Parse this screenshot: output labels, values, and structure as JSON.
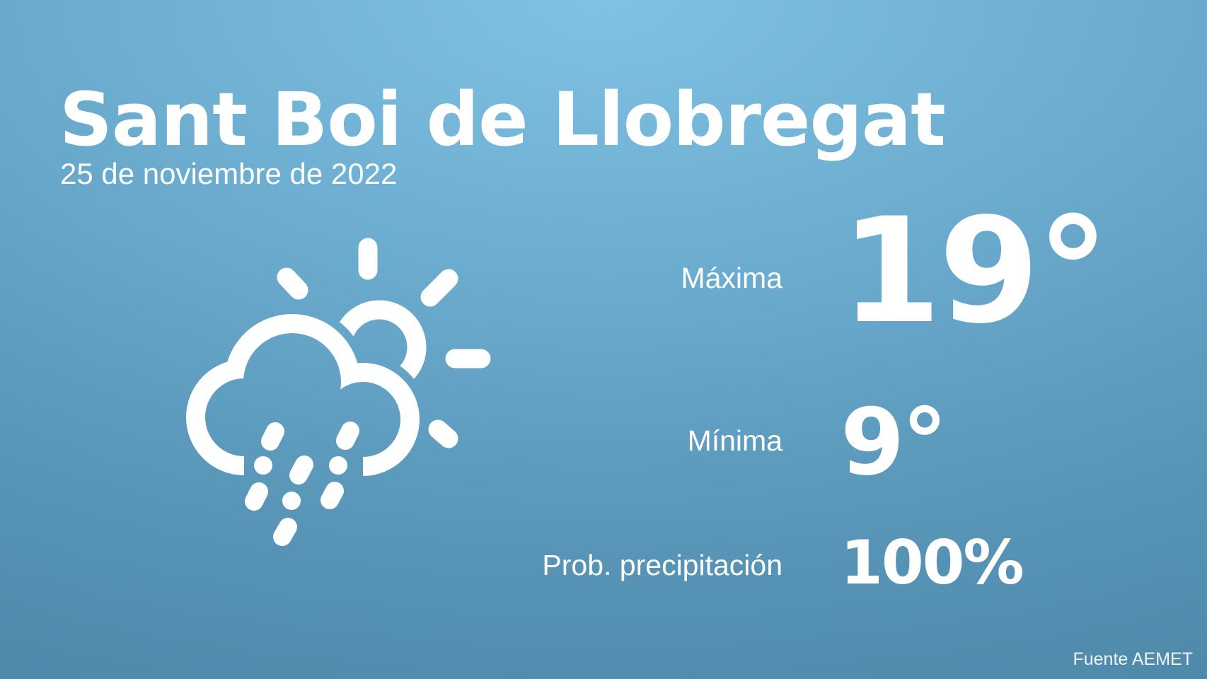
{
  "city": "Sant Boi de Llobregat",
  "date": "25 de noviembre de 2022",
  "weather_icon": "cloud-sun-rain-hail-icon",
  "max": {
    "label": "Máxima",
    "value": "19°"
  },
  "min": {
    "label": "Mínima",
    "value": "9°"
  },
  "precipitation": {
    "label": "Prob. precipitación",
    "value": "100%"
  },
  "source": "Fuente AEMET",
  "colors": {
    "background_top": "#80c2e4",
    "background_bottom": "#4f89aa",
    "text": "#ffffff"
  }
}
